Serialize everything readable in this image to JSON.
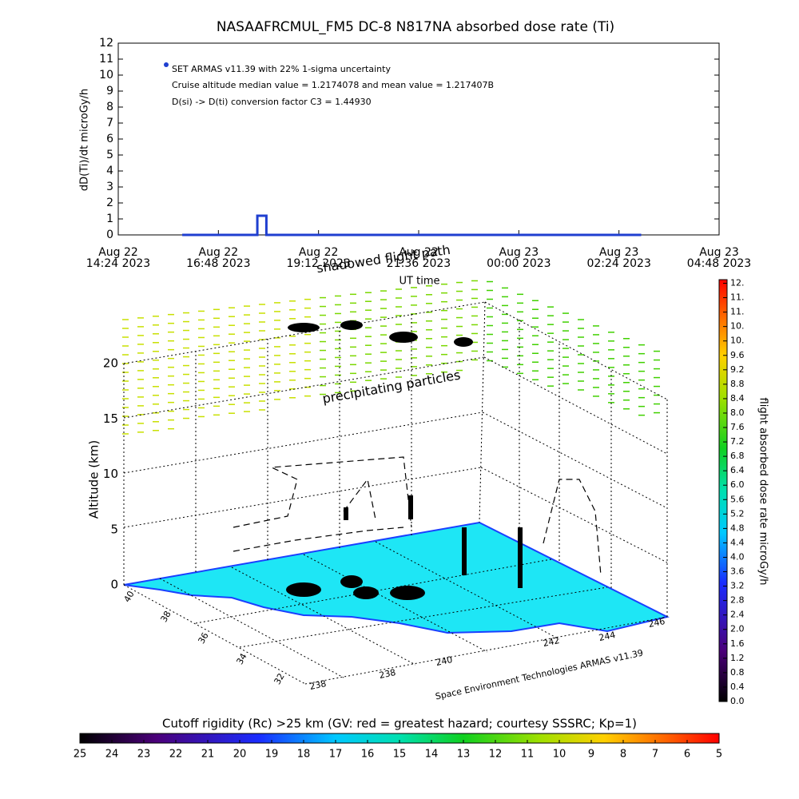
{
  "chart_data": {
    "type": "line",
    "title": "NASAAFRCMUL_FM5 DC-8   N817NA absorbed dose rate (Ti)",
    "y_label": "dD(Ti)/dt microGy/h",
    "x_label": "UT time",
    "annotations": [
      "SET ARMAS v11.39 with 22% 1-sigma uncertainty",
      "Cruise altitude median value = 1.2174078 and mean value = 1.217407B",
      "D(si) -> D(ti) conversion factor C3 = 1.44930"
    ],
    "x": [
      "2023-08-22T15:56",
      "2023-08-22T17:44",
      "2023-08-22T17:44",
      "2023-08-22T17:57",
      "2023-08-22T17:57",
      "2023-08-23T02:56"
    ],
    "series": [
      {
        "color": "#1f3fd0",
        "values": [
          0,
          0,
          1.2,
          1.2,
          0,
          0
        ]
      }
    ],
    "xlim": [
      "2023-08-22T14:24",
      "2023-08-23T04:48"
    ],
    "xticks": [
      {
        "value": "2023-08-22T14:24",
        "label": [
          "Aug 22",
          "14:24 2023"
        ]
      },
      {
        "value": "2023-08-22T16:48",
        "label": [
          "Aug 22",
          "16:48 2023"
        ]
      },
      {
        "value": "2023-08-22T19:12",
        "label": [
          "Aug 22",
          "19:12 2023"
        ]
      },
      {
        "value": "2023-08-22T21:36",
        "label": [
          "Aug 22",
          "21:36 2023"
        ]
      },
      {
        "value": "2023-08-23T00:00",
        "label": [
          "Aug 23",
          "00:00 2023"
        ]
      },
      {
        "value": "2023-08-23T02:24",
        "label": [
          "Aug 23",
          "02:24 2023"
        ]
      },
      {
        "value": "2023-08-23T04:48",
        "label": [
          "Aug 23",
          "04:48 2023"
        ]
      }
    ],
    "ylim": [
      0,
      12
    ],
    "yticks": [
      0,
      1,
      2,
      3,
      4,
      5,
      6,
      7,
      8,
      9,
      10,
      11,
      12
    ]
  },
  "scene": {
    "annotations": [
      "shadowed flight path",
      "precipitating particles"
    ],
    "z_label": "Altitude (km)",
    "zlim": [
      0,
      20
    ],
    "zticks": [
      0,
      5,
      10,
      15,
      20
    ],
    "lat_ticks": [
      40,
      38,
      36,
      34,
      32
    ],
    "lon_ticks": [
      238,
      238,
      240,
      242,
      244,
      246
    ],
    "credit": "Space Environment Technologies ARMAS v11.39"
  },
  "dose_colorbar": {
    "title": "flight absorbed dose rate microGy/h",
    "lim": [
      0,
      11.7
    ],
    "ticks": [
      {
        "value": 0,
        "label": "0.0"
      },
      0.4,
      0.8,
      1.2,
      1.6,
      {
        "value": 2,
        "label": "2.0"
      },
      2.4,
      2.8,
      3.2,
      3.6,
      {
        "value": 4,
        "label": "4.0"
      },
      4.4,
      4.8,
      5.2,
      5.6,
      {
        "value": 6,
        "label": "6.0"
      },
      6.4,
      6.8,
      7.2,
      7.6,
      {
        "value": 8,
        "label": "8.0"
      },
      8.4,
      8.8,
      9.2,
      9.6,
      {
        "value": 10,
        "label": "10."
      },
      {
        "value": 10.4,
        "label": "10."
      },
      {
        "value": 10.8,
        "label": "11."
      },
      {
        "value": 11.2,
        "label": "11."
      },
      {
        "value": 11.6,
        "label": "12."
      }
    ]
  },
  "rigidity_colorbar": {
    "title": "Cutoff rigidity (Rc) >25 km (GV: red = greatest hazard; courtesy SSSRC; Kp=1)",
    "lim": [
      25,
      5
    ],
    "ticks": [
      25,
      24,
      23,
      22,
      21,
      20,
      19,
      18,
      17,
      16,
      15,
      14,
      13,
      12,
      11,
      10,
      9,
      8,
      7,
      6,
      5
    ]
  }
}
